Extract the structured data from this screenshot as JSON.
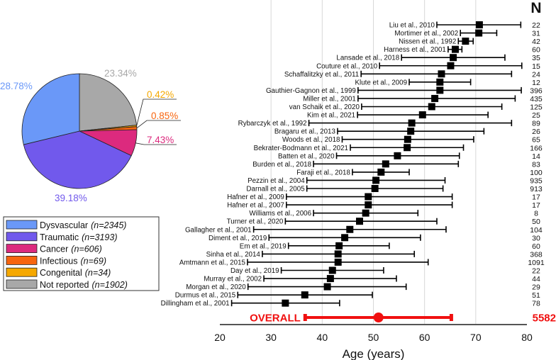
{
  "chart_data": [
    {
      "type": "pie",
      "slices": [
        {
          "label": "Not reported",
          "n_label": "(n=1902)",
          "value": 23.34,
          "pct_label": "23.34%",
          "color": "#A8A8A8"
        },
        {
          "label": "Congenital",
          "n_label": "(n=34)",
          "value": 0.42,
          "pct_label": "0.42%",
          "color": "#F5A800"
        },
        {
          "label": "Infectious",
          "n_label": "(n=69)",
          "value": 0.85,
          "pct_label": "0.85%",
          "color": "#F7650F"
        },
        {
          "label": "Cancer",
          "n_label": "(n=606)",
          "value": 7.43,
          "pct_label": "7.43%",
          "color": "#DC2A7E"
        },
        {
          "label": "Traumatic",
          "n_label": "(n=3193)",
          "value": 39.18,
          "pct_label": "39.18%",
          "color": "#7159EC"
        },
        {
          "label": "Dysvascular",
          "n_label": "(n=2345)",
          "value": 28.78,
          "pct_label": "28.78%",
          "color": "#6A98F8"
        }
      ],
      "legend_order": [
        "Dysvascular",
        "Traumatic",
        "Cancer",
        "Infectious",
        "Congenital",
        "Not reported"
      ],
      "legend_placement": "bottom-left"
    },
    {
      "type": "forest",
      "xlabel": "Age (years)",
      "xlim": [
        20,
        80
      ],
      "xticks": [
        20,
        30,
        40,
        50,
        60,
        70,
        80
      ],
      "grid": true,
      "n_header": "N",
      "studies": [
        {
          "label": "Liu et al., 2010",
          "mean": 70.7,
          "lo": 62.4,
          "hi": 78.8,
          "n": "22"
        },
        {
          "label": "Mortimer et al., 2002",
          "mean": 70.6,
          "lo": 67.0,
          "hi": 74.1,
          "n": "31"
        },
        {
          "label": "Nissen et al., 1992",
          "mean": 68.0,
          "lo": 66.6,
          "hi": 69.5,
          "n": "42"
        },
        {
          "label": "Harness et al., 2001",
          "mean": 66.0,
          "lo": 64.6,
          "hi": 67.3,
          "n": "60"
        },
        {
          "label": "Lansade et al., 2018",
          "mean": 65.6,
          "lo": 55.5,
          "hi": 75.7,
          "n": "35"
        },
        {
          "label": "Couture et al., 2010",
          "mean": 65.1,
          "lo": 51.2,
          "hi": 79.0,
          "n": "15"
        },
        {
          "label": "Schaffalitzky et al., 2011",
          "mean": 63.3,
          "lo": 47.6,
          "hi": 77.0,
          "n": "24"
        },
        {
          "label": "Klute et al., 2009",
          "mean": 63.0,
          "lo": 57.0,
          "hi": 69.0,
          "n": "12"
        },
        {
          "label": "Gauthier-Gagnon et al., 1999",
          "mean": 63.0,
          "lo": 47.0,
          "hi": 78.9,
          "n": "396"
        },
        {
          "label": "Miller et al., 2001",
          "mean": 62.0,
          "lo": 47.0,
          "hi": 77.7,
          "n": "435"
        },
        {
          "label": "van Schaik et al., 2020",
          "mean": 61.4,
          "lo": 47.7,
          "hi": 75.1,
          "n": "125"
        },
        {
          "label": "Kim et al., 2021",
          "mean": 59.6,
          "lo": 46.9,
          "hi": 72.4,
          "n": "25"
        },
        {
          "label": "Rybarczyk et al., 1992",
          "mean": 57.5,
          "lo": 37.4,
          "hi": 77.0,
          "n": "89"
        },
        {
          "label": "Bragaru et al., 2013",
          "mean": 57.3,
          "lo": 43.0,
          "hi": 71.6,
          "n": "26"
        },
        {
          "label": "Woods et al., 2018",
          "mean": 56.7,
          "lo": 43.9,
          "hi": 69.6,
          "n": "65"
        },
        {
          "label": "Bekrater-Bodmann et al., 2021",
          "mean": 56.6,
          "lo": 45.5,
          "hi": 67.6,
          "n": "166"
        },
        {
          "label": "Batten et al., 2020",
          "mean": 54.7,
          "lo": 42.8,
          "hi": 66.8,
          "n": "14"
        },
        {
          "label": "Burden et al., 2018",
          "mean": 52.4,
          "lo": 38.3,
          "hi": 66.6,
          "n": "83"
        },
        {
          "label": "Faraji et al., 2018",
          "mean": 51.5,
          "lo": 45.9,
          "hi": 57.0,
          "n": "100"
        },
        {
          "label": "Pezzin et al., 2004",
          "mean": 50.5,
          "lo": 37.0,
          "hi": 64.0,
          "n": "935"
        },
        {
          "label": "Darnall et al., 2005",
          "mean": 50.3,
          "lo": 37.0,
          "hi": 63.6,
          "n": "913"
        },
        {
          "label": "Hafner et al., 2009",
          "mean": 49.0,
          "lo": 33.0,
          "hi": 65.4,
          "n": "17"
        },
        {
          "label": "Hafner et al., 2007",
          "mean": 49.0,
          "lo": 33.0,
          "hi": 65.4,
          "n": "17"
        },
        {
          "label": "Williams et al., 2006",
          "mean": 48.5,
          "lo": 38.3,
          "hi": 58.7,
          "n": "8"
        },
        {
          "label": "Turner et al., 2020",
          "mean": 47.3,
          "lo": 32.8,
          "hi": 62.4,
          "n": "50"
        },
        {
          "label": "Gallagher et al., 2001",
          "mean": 45.4,
          "lo": 26.6,
          "hi": 64.2,
          "n": "104"
        },
        {
          "label": "Diment et al., 2019",
          "mean": 44.4,
          "lo": 29.6,
          "hi": 59.2,
          "n": "30"
        },
        {
          "label": "Em et al., 2019",
          "mean": 43.3,
          "lo": 33.4,
          "hi": 53.1,
          "n": "60"
        },
        {
          "label": "Sinha et al., 2014",
          "mean": 43.1,
          "lo": 28.3,
          "hi": 58.0,
          "n": "368"
        },
        {
          "label": "Amtmann et al., 2015",
          "mean": 43.1,
          "lo": 25.4,
          "hi": 60.7,
          "n": "1091"
        },
        {
          "label": "Day et al., 2019",
          "mean": 42.0,
          "lo": 32.0,
          "hi": 52.0,
          "n": "22"
        },
        {
          "label": "Murray et al., 2002",
          "mean": 41.6,
          "lo": 28.6,
          "hi": 54.5,
          "n": "44"
        },
        {
          "label": "Morgan et al., 2020",
          "mean": 41.0,
          "lo": 25.5,
          "hi": 56.4,
          "n": "29"
        },
        {
          "label": "Durmus et al., 2015",
          "mean": 36.6,
          "lo": 23.5,
          "hi": 49.8,
          "n": "51"
        },
        {
          "label": "Dillingham et al., 2001",
          "mean": 32.8,
          "lo": 22.3,
          "hi": 43.4,
          "n": "78"
        }
      ],
      "overall": {
        "label": "OVERALL",
        "mean": 51.0,
        "lo": 36.6,
        "hi": 65.3,
        "n": "5582",
        "color": "#F01010"
      }
    }
  ]
}
